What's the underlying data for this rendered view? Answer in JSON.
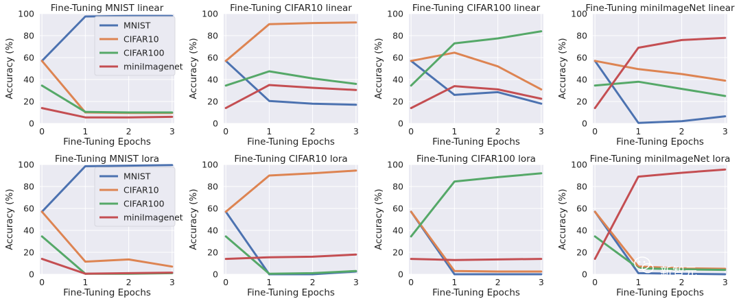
{
  "colors": {
    "background": "#EAEAF2",
    "grid": "#FFFFFF",
    "MNIST": "#4C72B0",
    "CIFAR10": "#DD8452",
    "CIFAR100": "#55A868",
    "miniImagenet": "#C44E52"
  },
  "watermark": {
    "icon": "wechat-icon",
    "text": "新智元"
  },
  "chart_data": [
    {
      "type": "line",
      "title": "Fine-Tuning MNIST linear",
      "xlabel": "Fine-Tuning Epochs",
      "ylabel": "Accuracy (%)",
      "x": [
        0,
        1,
        2,
        3
      ],
      "xlim": [
        -0.05,
        3.05
      ],
      "ylim": [
        0,
        100
      ],
      "yticks": [
        0,
        20,
        40,
        60,
        80,
        100
      ],
      "grid": true,
      "legend": "top-right",
      "series": [
        {
          "name": "MNIST",
          "color": "#4C72B0",
          "values": [
            57,
            97.5,
            98,
            98
          ]
        },
        {
          "name": "CIFAR10",
          "color": "#DD8452",
          "values": [
            57,
            10,
            9.5,
            9.5
          ]
        },
        {
          "name": "CIFAR100",
          "color": "#55A868",
          "values": [
            34.5,
            10.5,
            10,
            10
          ]
        },
        {
          "name": "miniImagenet",
          "color": "#C44E52",
          "values": [
            14,
            5.5,
            5.5,
            6
          ]
        }
      ]
    },
    {
      "type": "line",
      "title": "Fine-Tuning CIFAR10 linear",
      "xlabel": "Fine-Tuning Epochs",
      "ylabel": "Accuracy (%)",
      "x": [
        0,
        1,
        2,
        3
      ],
      "xlim": [
        -0.05,
        3.05
      ],
      "ylim": [
        0,
        100
      ],
      "yticks": [
        0,
        20,
        40,
        60,
        80,
        100
      ],
      "grid": true,
      "series": [
        {
          "name": "MNIST",
          "color": "#4C72B0",
          "values": [
            57,
            20.5,
            18,
            17
          ]
        },
        {
          "name": "CIFAR10",
          "color": "#DD8452",
          "values": [
            57,
            90.5,
            91.5,
            92
          ]
        },
        {
          "name": "CIFAR100",
          "color": "#55A868",
          "values": [
            34.5,
            47.5,
            41,
            36
          ]
        },
        {
          "name": "miniImagenet",
          "color": "#C44E52",
          "values": [
            14,
            35,
            32.5,
            30.5
          ]
        }
      ]
    },
    {
      "type": "line",
      "title": "Fine-Tuning CIFAR100 linear",
      "xlabel": "Fine-Tuning Epochs",
      "ylabel": "Accuracy (%)",
      "x": [
        0,
        1,
        2,
        3
      ],
      "xlim": [
        -0.05,
        3.05
      ],
      "ylim": [
        0,
        100
      ],
      "yticks": [
        0,
        20,
        40,
        60,
        80,
        100
      ],
      "grid": true,
      "series": [
        {
          "name": "MNIST",
          "color": "#4C72B0",
          "values": [
            57,
            26,
            28.5,
            18
          ]
        },
        {
          "name": "CIFAR10",
          "color": "#DD8452",
          "values": [
            57,
            64.5,
            52,
            31
          ]
        },
        {
          "name": "CIFAR100",
          "color": "#55A868",
          "values": [
            34.5,
            73,
            77.5,
            84
          ]
        },
        {
          "name": "miniImagenet",
          "color": "#C44E52",
          "values": [
            14,
            34,
            31,
            22.5
          ]
        }
      ]
    },
    {
      "type": "line",
      "title": "Fine-Tuning miniImageNet linear",
      "xlabel": "Fine-Tuning Epochs",
      "ylabel": "Accuracy (%)",
      "x": [
        0,
        1,
        2,
        3
      ],
      "xlim": [
        -0.05,
        3.05
      ],
      "ylim": [
        0,
        100
      ],
      "yticks": [
        0,
        20,
        40,
        60,
        80,
        100
      ],
      "grid": true,
      "series": [
        {
          "name": "MNIST",
          "color": "#4C72B0",
          "values": [
            57,
            0.5,
            2,
            6.5
          ]
        },
        {
          "name": "CIFAR10",
          "color": "#DD8452",
          "values": [
            57,
            49.5,
            45,
            39
          ]
        },
        {
          "name": "CIFAR100",
          "color": "#55A868",
          "values": [
            34.5,
            38,
            31.5,
            25
          ]
        },
        {
          "name": "miniImagenet",
          "color": "#C44E52",
          "values": [
            14,
            69,
            76,
            78
          ]
        }
      ]
    },
    {
      "type": "line",
      "title": "Fine-Tuning MNIST lora",
      "xlabel": "Fine-Tuning Epochs",
      "ylabel": "Accuracy (%)",
      "x": [
        0,
        1,
        2,
        3
      ],
      "xlim": [
        -0.05,
        3.05
      ],
      "ylim": [
        0,
        100
      ],
      "yticks": [
        0,
        20,
        40,
        60,
        80,
        100
      ],
      "grid": true,
      "legend": "top-right",
      "series": [
        {
          "name": "MNIST",
          "color": "#4C72B0",
          "values": [
            57,
            98.5,
            99,
            99.5
          ]
        },
        {
          "name": "CIFAR10",
          "color": "#DD8452",
          "values": [
            57,
            11.5,
            13.5,
            7
          ]
        },
        {
          "name": "CIFAR100",
          "color": "#55A868",
          "values": [
            34.5,
            0.5,
            0.5,
            1
          ]
        },
        {
          "name": "miniImagenet",
          "color": "#C44E52",
          "values": [
            14,
            0.5,
            1,
            1.5
          ]
        }
      ]
    },
    {
      "type": "line",
      "title": "Fine-Tuning CIFAR10 lora",
      "xlabel": "Fine-Tuning Epochs",
      "ylabel": "Accuracy (%)",
      "x": [
        0,
        1,
        2,
        3
      ],
      "xlim": [
        -0.05,
        3.05
      ],
      "ylim": [
        0,
        100
      ],
      "yticks": [
        0,
        20,
        40,
        60,
        80,
        100
      ],
      "grid": true,
      "series": [
        {
          "name": "MNIST",
          "color": "#4C72B0",
          "values": [
            57,
            0,
            0,
            2.5
          ]
        },
        {
          "name": "CIFAR10",
          "color": "#DD8452",
          "values": [
            57,
            90,
            92,
            94.5
          ]
        },
        {
          "name": "CIFAR100",
          "color": "#55A868",
          "values": [
            34.5,
            0.5,
            1,
            3
          ]
        },
        {
          "name": "miniImagenet",
          "color": "#C44E52",
          "values": [
            14,
            15.5,
            16,
            18
          ]
        }
      ]
    },
    {
      "type": "line",
      "title": "Fine-Tuning CIFAR100 lora",
      "xlabel": "Fine-Tuning Epochs",
      "ylabel": "Accuracy (%)",
      "x": [
        0,
        1,
        2,
        3
      ],
      "xlim": [
        -0.05,
        3.05
      ],
      "ylim": [
        0,
        100
      ],
      "yticks": [
        0,
        20,
        40,
        60,
        80,
        100
      ],
      "grid": true,
      "series": [
        {
          "name": "MNIST",
          "color": "#4C72B0",
          "values": [
            57,
            0,
            0,
            0
          ]
        },
        {
          "name": "CIFAR10",
          "color": "#DD8452",
          "values": [
            57,
            3,
            2.5,
            2.5
          ]
        },
        {
          "name": "CIFAR100",
          "color": "#55A868",
          "values": [
            34.5,
            84.5,
            88.5,
            92
          ]
        },
        {
          "name": "miniImagenet",
          "color": "#C44E52",
          "values": [
            14,
            13,
            13.5,
            14
          ]
        }
      ]
    },
    {
      "type": "line",
      "title": "Fine-Tuning miniImageNet lora",
      "xlabel": "Fine-Tuning Epochs",
      "ylabel": "Accuracy (%)",
      "x": [
        0,
        1,
        2,
        3
      ],
      "xlim": [
        -0.05,
        3.05
      ],
      "ylim": [
        0,
        100
      ],
      "yticks": [
        0,
        20,
        40,
        60,
        80,
        100
      ],
      "grid": true,
      "series": [
        {
          "name": "MNIST",
          "color": "#4C72B0",
          "values": [
            57,
            1,
            0.5,
            0
          ]
        },
        {
          "name": "CIFAR10",
          "color": "#DD8452",
          "values": [
            57,
            7,
            5.5,
            5
          ]
        },
        {
          "name": "CIFAR100",
          "color": "#55A868",
          "values": [
            34.5,
            5.5,
            4.5,
            4
          ]
        },
        {
          "name": "miniImagenet",
          "color": "#C44E52",
          "values": [
            14,
            89,
            92.5,
            95.5
          ]
        }
      ]
    }
  ]
}
